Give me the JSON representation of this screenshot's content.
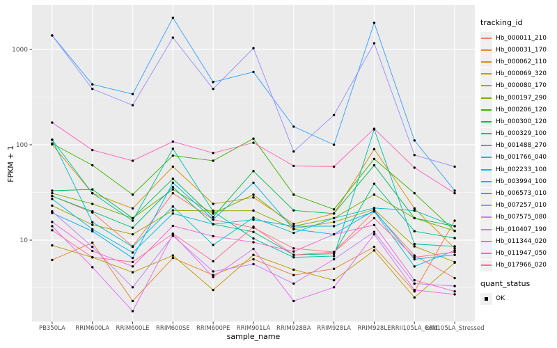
{
  "chart_data": {
    "type": "line",
    "title": "",
    "xlabel": "sample_name",
    "ylabel": "FPKM + 1",
    "y_scale": "log10",
    "grid": "on",
    "legend_position": "right",
    "legend_title": "tracking_id",
    "y_ticks": [
      "10",
      "100",
      "1000"
    ],
    "y_tick_values": [
      10,
      100,
      1000
    ],
    "y_minor_values": [
      3.162,
      31.62,
      316.2
    ],
    "ylim": [
      1.4,
      2900
    ],
    "categories": [
      "PB350LA",
      "RRIM600LA",
      "RRIM600LE",
      "RRIM600SE",
      "RRIM600PE",
      "RRIM901LA",
      "RRIM928BA",
      "RRIM928LA",
      "RRIM928LE",
      "RRII105LA_Cold",
      "RRII105LA_Stressed"
    ],
    "series": [
      {
        "name": "Hb_000011_210",
        "color": "#F8766D",
        "values": [
          29,
          19.5,
          8.6,
          31,
          16.4,
          13.5,
          8.2,
          7.5,
          20,
          6.9,
          4.0
        ]
      },
      {
        "name": "Hb_000031_170",
        "color": "#EA8331",
        "values": [
          6.2,
          9.4,
          2.3,
          6.5,
          4.3,
          6.3,
          4.3,
          5.0,
          8.5,
          2.9,
          16
        ]
      },
      {
        "name": "Hb_000062_110",
        "color": "#D89000",
        "values": [
          101,
          31,
          21.5,
          59,
          24,
          28,
          14.8,
          19,
          90,
          21.5,
          8.2
        ]
      },
      {
        "name": "Hb_000069_320",
        "color": "#C09B00",
        "values": [
          8.8,
          6.6,
          4.6,
          6.9,
          3.0,
          7.0,
          4.9,
          3.8,
          7.8,
          2.5,
          5.8
        ]
      },
      {
        "name": "Hb_000080_170",
        "color": "#A3A500",
        "values": [
          23,
          14.5,
          11.5,
          20.5,
          20.3,
          20.4,
          13.2,
          15.5,
          21,
          8.6,
          5.9
        ]
      },
      {
        "name": "Hb_000197_290",
        "color": "#7CAE00",
        "values": [
          31,
          24,
          17,
          34,
          19,
          30,
          14,
          17,
          30,
          17,
          12.5
        ]
      },
      {
        "name": "Hb_000206_120",
        "color": "#39B600",
        "values": [
          103,
          61,
          30,
          77,
          68,
          116,
          30,
          21,
          71,
          31,
          12.5
        ]
      },
      {
        "name": "Hb_000300_120",
        "color": "#00BB4E",
        "values": [
          33,
          34,
          17,
          44,
          17.5,
          53,
          20.5,
          19,
          61,
          17,
          14
        ]
      },
      {
        "name": "Hb_000329_100",
        "color": "#00BF7D",
        "values": [
          29,
          20,
          13.5,
          36,
          14.7,
          12.2,
          7.0,
          7.2,
          39,
          12.4,
          10.5
        ]
      },
      {
        "name": "Hb_001488_270",
        "color": "#00C1A3",
        "values": [
          113,
          31,
          16,
          91,
          20,
          10.4,
          6.6,
          6.8,
          145,
          9.1,
          8.6
        ]
      },
      {
        "name": "Hb_001766_040",
        "color": "#00BFC4",
        "values": [
          113,
          15.4,
          8.5,
          22.5,
          8.9,
          17.2,
          11.9,
          17,
          21.7,
          20.4,
          14
        ]
      },
      {
        "name": "Hb_002233_100",
        "color": "#00BAE0",
        "values": [
          27,
          13,
          7.4,
          19,
          14.7,
          16.4,
          14,
          14,
          20,
          5.3,
          7.8
        ]
      },
      {
        "name": "Hb_003994_100",
        "color": "#00B0F6",
        "values": [
          19.3,
          12.4,
          6.5,
          40,
          16.5,
          40,
          13,
          11.5,
          20.5,
          6.3,
          7.0
        ]
      },
      {
        "name": "Hb_006573_010",
        "color": "#35A2FF",
        "values": [
          1400,
          430,
          340,
          2150,
          455,
          580,
          155,
          100,
          1900,
          111,
          33
        ]
      },
      {
        "name": "Hb_007257_010",
        "color": "#9590FF",
        "values": [
          1400,
          385,
          260,
          1330,
          385,
          1030,
          85,
          205,
          1160,
          78,
          59
        ]
      },
      {
        "name": "Hb_007575_080",
        "color": "#C77CFF",
        "values": [
          20,
          8.5,
          3.2,
          11.1,
          4.7,
          5.6,
          3.5,
          6.3,
          12.2,
          3.5,
          3.3
        ]
      },
      {
        "name": "Hb_010407_190",
        "color": "#E76BF3",
        "values": [
          14,
          5.2,
          1.8,
          11.5,
          4.1,
          8.1,
          2.3,
          3.2,
          11.5,
          3.0,
          2.7
        ]
      },
      {
        "name": "Hb_011344_020",
        "color": "#FA62DB",
        "values": [
          15.5,
          7.7,
          5.3,
          14.1,
          11,
          9.5,
          7.6,
          11.5,
          14.4,
          3.8,
          2.9
        ]
      },
      {
        "name": "Hb_011947_050",
        "color": "#FF62BC",
        "values": [
          171,
          88,
          68,
          108,
          82,
          105,
          60,
          59,
          147,
          57.5,
          31
        ]
      },
      {
        "name": "Hb_017966_020",
        "color": "#FF6A98",
        "values": [
          12.7,
          6.6,
          5.9,
          11.7,
          6.0,
          13.8,
          7.0,
          7.5,
          17,
          6.6,
          7.5
        ]
      }
    ],
    "quant_series": {
      "title": "quant_status",
      "items": [
        {
          "label": "OK",
          "marker": "square",
          "color": "#000000"
        }
      ]
    },
    "colors": {
      "panel_bg": "#EBEBEB",
      "grid": "#FFFFFF",
      "tick_mark": "#333333",
      "tick_label": "#4D4D4D",
      "axis_title": "#000000",
      "point": "#000000",
      "legend_key_bg": "#F0F0F0"
    }
  }
}
